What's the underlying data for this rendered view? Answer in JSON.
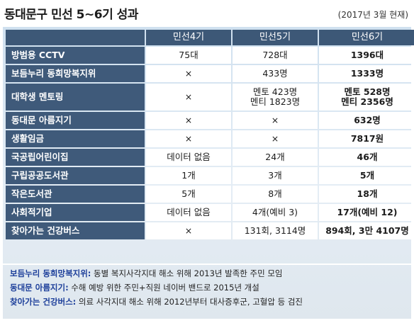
{
  "title": "동대문구 민선 5~6기 성과",
  "date_note": "(2017년 3월 현재)",
  "table": {
    "headers": [
      "",
      "민선4기",
      "민선5기",
      "민선6기"
    ],
    "rows": [
      {
        "label": "방범용 CCTV",
        "c4": "75대",
        "c5": "728대",
        "c6": "1396대"
      },
      {
        "label": "보듬누리 동희망복지위",
        "c4": "×",
        "c5": "433명",
        "c6": "1333명"
      },
      {
        "label": "대학생 멘토링",
        "c4": "×",
        "c5": "멘토 423명\n멘티 1823명",
        "c6": "멘토 528명\n멘티 2356명"
      },
      {
        "label": "동대문 아름지기",
        "c4": "×",
        "c5": "×",
        "c6": "632명"
      },
      {
        "label": "생활임금",
        "c4": "×",
        "c5": "×",
        "c6": "7817원"
      },
      {
        "label": "국공립어린이집",
        "c4": "데이터 없음",
        "c5": "24개",
        "c6": "46개"
      },
      {
        "label": "구립공공도서관",
        "c4": "1개",
        "c5": "3개",
        "c6": "5개"
      },
      {
        "label": "작은도서관",
        "c4": "5개",
        "c5": "8개",
        "c6": "18개"
      },
      {
        "label": "사회적기업",
        "c4": "데이터 없음",
        "c5": "4개(예비 3)",
        "c6": "17개(예비 12)"
      },
      {
        "label": "찾아가는 건강버스",
        "c4": "×",
        "c5": "131회, 3114명",
        "c6": "894회, 3만 4107명"
      }
    ]
  },
  "notes": [
    {
      "term": "보듬누리 동희망복지위:",
      "text": " 동별 복지사각지대 해소 위해 2013년 발족한 주민 모임"
    },
    {
      "term": "동대문 아름지기:",
      "text": " 수해 예방 위한 주민+직원 네이버 밴드로 2015년 개설"
    },
    {
      "term": "찾아가는 건강버스:",
      "text": " 의료 사각지대 해소 위해 2012년부터 대사증후군, 고혈압 등 검진"
    }
  ]
}
